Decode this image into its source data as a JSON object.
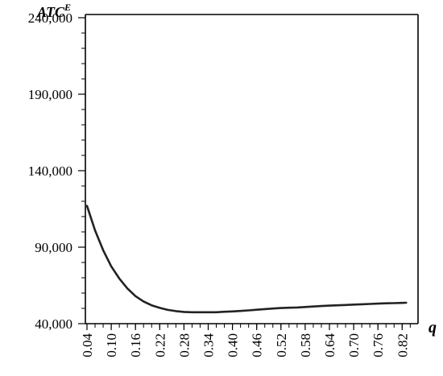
{
  "chart_data": {
    "type": "line",
    "ylabel": "ATC",
    "ylabel_superscript": "E",
    "xlabel": "q",
    "ylim": [
      40000,
      240000
    ],
    "xlim": [
      0.04,
      0.83
    ],
    "y_ticks": [
      {
        "value": 40000,
        "label": "40,000"
      },
      {
        "value": 90000,
        "label": "90,000"
      },
      {
        "value": 140000,
        "label": "140,000"
      },
      {
        "value": 190000,
        "label": "190,000"
      },
      {
        "value": 240000,
        "label": "240,000"
      }
    ],
    "y_minor_step": 10000,
    "x_ticks": [
      {
        "value": 0.04,
        "label": "0.04"
      },
      {
        "value": 0.1,
        "label": "0.10"
      },
      {
        "value": 0.16,
        "label": "0.16"
      },
      {
        "value": 0.22,
        "label": "0.22"
      },
      {
        "value": 0.28,
        "label": "0.28"
      },
      {
        "value": 0.34,
        "label": "0.34"
      },
      {
        "value": 0.4,
        "label": "0.40"
      },
      {
        "value": 0.46,
        "label": "0.46"
      },
      {
        "value": 0.52,
        "label": "0.52"
      },
      {
        "value": 0.58,
        "label": "0.58"
      },
      {
        "value": 0.64,
        "label": "0.64"
      },
      {
        "value": 0.7,
        "label": "0.70"
      },
      {
        "value": 0.76,
        "label": "0.76"
      },
      {
        "value": 0.82,
        "label": "0.82"
      }
    ],
    "x_minor_step": 0.02,
    "grid": false,
    "series": [
      {
        "color": "#222222",
        "x": [
          0.04,
          0.06,
          0.08,
          0.1,
          0.12,
          0.14,
          0.16,
          0.18,
          0.2,
          0.22,
          0.24,
          0.26,
          0.28,
          0.3,
          0.32,
          0.34,
          0.36,
          0.38,
          0.4,
          0.42,
          0.44,
          0.46,
          0.48,
          0.5,
          0.52,
          0.54,
          0.56,
          0.58,
          0.6,
          0.62,
          0.64,
          0.66,
          0.68,
          0.7,
          0.72,
          0.74,
          0.76,
          0.78,
          0.8,
          0.82,
          0.83
        ],
        "values": [
          117000,
          101000,
          88000,
          77500,
          69500,
          63000,
          58000,
          54500,
          52000,
          50300,
          49000,
          48200,
          47700,
          47500,
          47500,
          47500,
          47500,
          47800,
          48000,
          48300,
          48700,
          49100,
          49500,
          49900,
          50200,
          50400,
          50600,
          50900,
          51200,
          51500,
          51800,
          52000,
          52200,
          52500,
          52700,
          52900,
          53100,
          53300,
          53400,
          53600,
          53700
        ]
      }
    ]
  }
}
